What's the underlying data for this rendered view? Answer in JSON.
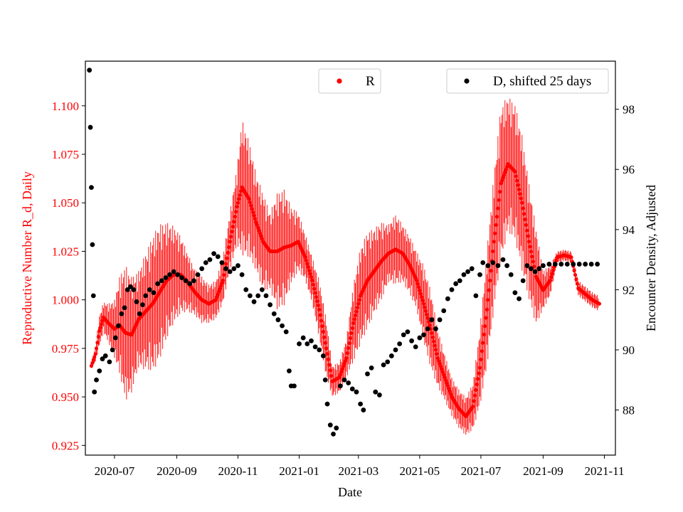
{
  "chart_data": {
    "type": "scatter",
    "xlabel": "Date",
    "ylabel_left": "Reproductive Number R_d, Daily",
    "ylabel_right": "Encounter Density, Adjusted",
    "x_range": [
      "2020-06-02",
      "2021-11-12"
    ],
    "ylim_left": [
      0.92,
      1.123
    ],
    "ylim_right": [
      86.5,
      99.6
    ],
    "x_ticks": [
      {
        "label": "2020-07",
        "date": "2020-07-01"
      },
      {
        "label": "2020-09",
        "date": "2020-09-01"
      },
      {
        "label": "2020-11",
        "date": "2020-11-01"
      },
      {
        "label": "2021-01",
        "date": "2021-01-01"
      },
      {
        "label": "2021-03",
        "date": "2021-03-01"
      },
      {
        "label": "2021-05",
        "date": "2021-05-01"
      },
      {
        "label": "2021-07",
        "date": "2021-07-01"
      },
      {
        "label": "2021-09",
        "date": "2021-09-01"
      },
      {
        "label": "2021-11",
        "date": "2021-11-01"
      }
    ],
    "y_ticks_left": [
      "0.925",
      "0.950",
      "0.975",
      "1.000",
      "1.025",
      "1.050",
      "1.075",
      "1.100"
    ],
    "y_ticks_right": [
      "88",
      "90",
      "92",
      "94",
      "96",
      "98"
    ],
    "legend_r": "R",
    "legend_d": "D, shifted 25 days",
    "colors": {
      "R": "#ff0000",
      "D": "#000000",
      "left_axis": "#ff0000"
    },
    "series_R": {
      "name": "R",
      "error_bars": true,
      "points": [
        [
          "2020-06-08",
          0.966,
          0.002
        ],
        [
          "2020-06-12",
          0.972,
          0.004
        ],
        [
          "2020-06-16",
          0.984,
          0.008
        ],
        [
          "2020-06-20",
          0.991,
          0.008
        ],
        [
          "2020-06-25",
          0.988,
          0.01
        ],
        [
          "2020-07-01",
          0.985,
          0.015
        ],
        [
          "2020-07-06",
          0.987,
          0.025
        ],
        [
          "2020-07-12",
          0.983,
          0.035
        ],
        [
          "2020-07-18",
          0.982,
          0.03
        ],
        [
          "2020-07-25",
          0.99,
          0.025
        ],
        [
          "2020-08-01",
          0.994,
          0.03
        ],
        [
          "2020-08-08",
          0.998,
          0.035
        ],
        [
          "2020-08-15",
          1.004,
          0.035
        ],
        [
          "2020-08-22",
          1.01,
          0.03
        ],
        [
          "2020-08-29",
          1.013,
          0.025
        ],
        [
          "2020-09-05",
          1.013,
          0.02
        ],
        [
          "2020-09-12",
          1.009,
          0.015
        ],
        [
          "2020-09-19",
          1.004,
          0.012
        ],
        [
          "2020-09-26",
          1.0,
          0.012
        ],
        [
          "2020-10-03",
          0.998,
          0.01
        ],
        [
          "2020-10-10",
          1.0,
          0.01
        ],
        [
          "2020-10-17",
          1.01,
          0.012
        ],
        [
          "2020-10-24",
          1.03,
          0.015
        ],
        [
          "2020-10-31",
          1.048,
          0.02
        ],
        [
          "2020-11-05",
          1.058,
          0.035
        ],
        [
          "2020-11-12",
          1.052,
          0.03
        ],
        [
          "2020-11-19",
          1.04,
          0.025
        ],
        [
          "2020-11-26",
          1.03,
          0.025
        ],
        [
          "2020-12-03",
          1.025,
          0.02
        ],
        [
          "2020-12-10",
          1.025,
          0.03
        ],
        [
          "2020-12-17",
          1.027,
          0.03
        ],
        [
          "2020-12-24",
          1.028,
          0.02
        ],
        [
          "2020-12-31",
          1.03,
          0.015
        ],
        [
          "2021-01-07",
          1.022,
          0.012
        ],
        [
          "2021-01-14",
          1.01,
          0.012
        ],
        [
          "2021-01-21",
          0.995,
          0.015
        ],
        [
          "2021-01-28",
          0.975,
          0.015
        ],
        [
          "2021-02-03",
          0.958,
          0.008
        ],
        [
          "2021-02-10",
          0.96,
          0.008
        ],
        [
          "2021-02-17",
          0.97,
          0.01
        ],
        [
          "2021-02-24",
          0.988,
          0.02
        ],
        [
          "2021-03-03",
          1.002,
          0.025
        ],
        [
          "2021-03-10",
          1.01,
          0.025
        ],
        [
          "2021-03-17",
          1.015,
          0.022
        ],
        [
          "2021-03-24",
          1.02,
          0.02
        ],
        [
          "2021-03-31",
          1.024,
          0.015
        ],
        [
          "2021-04-07",
          1.026,
          0.018
        ],
        [
          "2021-04-14",
          1.024,
          0.015
        ],
        [
          "2021-04-21",
          1.018,
          0.015
        ],
        [
          "2021-04-28",
          1.01,
          0.015
        ],
        [
          "2021-05-05",
          0.998,
          0.02
        ],
        [
          "2021-05-12",
          0.985,
          0.02
        ],
        [
          "2021-05-19",
          0.97,
          0.015
        ],
        [
          "2021-05-26",
          0.96,
          0.012
        ],
        [
          "2021-06-02",
          0.95,
          0.01
        ],
        [
          "2021-06-09",
          0.944,
          0.01
        ],
        [
          "2021-06-16",
          0.94,
          0.01
        ],
        [
          "2021-06-23",
          0.945,
          0.012
        ],
        [
          "2021-06-30",
          0.965,
          0.02
        ],
        [
          "2021-07-07",
          0.995,
          0.03
        ],
        [
          "2021-07-14",
          1.03,
          0.035
        ],
        [
          "2021-07-21",
          1.06,
          0.04
        ],
        [
          "2021-07-28",
          1.07,
          0.035
        ],
        [
          "2021-08-04",
          1.066,
          0.035
        ],
        [
          "2021-08-11",
          1.05,
          0.035
        ],
        [
          "2021-08-18",
          1.03,
          0.03
        ],
        [
          "2021-08-25",
          1.012,
          0.025
        ],
        [
          "2021-09-01",
          1.005,
          0.01
        ],
        [
          "2021-09-08",
          1.01,
          0.008
        ],
        [
          "2021-09-15",
          1.022,
          0.003
        ],
        [
          "2021-09-22",
          1.023,
          0.003
        ],
        [
          "2021-09-29",
          1.022,
          0.003
        ],
        [
          "2021-10-06",
          1.006,
          0.004
        ],
        [
          "2021-10-13",
          1.003,
          0.004
        ],
        [
          "2021-10-20",
          1.0,
          0.004
        ],
        [
          "2021-10-27",
          0.998,
          0.004
        ]
      ]
    },
    "series_D": {
      "name": "D, shifted 25 days",
      "axis": "right",
      "points": [
        [
          "2020-06-06",
          99.3
        ],
        [
          "2020-06-07",
          97.4
        ],
        [
          "2020-06-08",
          95.4
        ],
        [
          "2020-06-09",
          93.5
        ],
        [
          "2020-06-10",
          91.8
        ],
        [
          "2020-06-11",
          88.6
        ],
        [
          "2020-06-13",
          89.0
        ],
        [
          "2020-06-16",
          89.3
        ],
        [
          "2020-06-19",
          89.7
        ],
        [
          "2020-06-22",
          89.8
        ],
        [
          "2020-06-26",
          89.6
        ],
        [
          "2020-06-29",
          90.0
        ],
        [
          "2020-07-02",
          90.4
        ],
        [
          "2020-07-05",
          90.8
        ],
        [
          "2020-07-08",
          91.2
        ],
        [
          "2020-07-11",
          91.4
        ],
        [
          "2020-07-14",
          92.0
        ],
        [
          "2020-07-17",
          92.1
        ],
        [
          "2020-07-20",
          92.0
        ],
        [
          "2020-07-23",
          91.6
        ],
        [
          "2020-07-26",
          91.2
        ],
        [
          "2020-07-29",
          91.5
        ],
        [
          "2020-08-01",
          91.8
        ],
        [
          "2020-08-05",
          92.0
        ],
        [
          "2020-08-09",
          91.9
        ],
        [
          "2020-08-13",
          92.2
        ],
        [
          "2020-08-17",
          92.3
        ],
        [
          "2020-08-21",
          92.4
        ],
        [
          "2020-08-25",
          92.5
        ],
        [
          "2020-08-29",
          92.6
        ],
        [
          "2020-09-02",
          92.5
        ],
        [
          "2020-09-06",
          92.4
        ],
        [
          "2020-09-10",
          92.3
        ],
        [
          "2020-09-14",
          92.2
        ],
        [
          "2020-09-18",
          92.3
        ],
        [
          "2020-09-22",
          92.5
        ],
        [
          "2020-09-26",
          92.7
        ],
        [
          "2020-09-30",
          92.9
        ],
        [
          "2020-10-04",
          93.0
        ],
        [
          "2020-10-08",
          93.2
        ],
        [
          "2020-10-12",
          93.1
        ],
        [
          "2020-10-16",
          92.9
        ],
        [
          "2020-10-20",
          92.7
        ],
        [
          "2020-10-24",
          92.6
        ],
        [
          "2020-10-28",
          92.7
        ],
        [
          "2020-11-01",
          92.8
        ],
        [
          "2020-11-05",
          92.5
        ],
        [
          "2020-11-09",
          92.0
        ],
        [
          "2020-11-13",
          91.8
        ],
        [
          "2020-11-17",
          91.6
        ],
        [
          "2020-11-21",
          91.8
        ],
        [
          "2020-11-25",
          92.0
        ],
        [
          "2020-11-29",
          91.8
        ],
        [
          "2020-12-03",
          91.5
        ],
        [
          "2020-12-07",
          91.2
        ],
        [
          "2020-12-11",
          91.0
        ],
        [
          "2020-12-15",
          90.8
        ],
        [
          "2020-12-19",
          90.6
        ],
        [
          "2020-12-22",
          89.3
        ],
        [
          "2020-12-24",
          88.8
        ],
        [
          "2020-12-27",
          88.8
        ],
        [
          "2021-01-01",
          90.2
        ],
        [
          "2021-01-05",
          90.4
        ],
        [
          "2021-01-09",
          90.2
        ],
        [
          "2021-01-13",
          90.3
        ],
        [
          "2021-01-17",
          90.1
        ],
        [
          "2021-01-21",
          90.0
        ],
        [
          "2021-01-25",
          89.8
        ],
        [
          "2021-01-27",
          89.0
        ],
        [
          "2021-01-29",
          88.2
        ],
        [
          "2021-02-01",
          87.5
        ],
        [
          "2021-02-04",
          87.2
        ],
        [
          "2021-02-07",
          87.4
        ],
        [
          "2021-02-11",
          88.8
        ],
        [
          "2021-02-15",
          89.0
        ],
        [
          "2021-02-19",
          88.9
        ],
        [
          "2021-02-23",
          88.7
        ],
        [
          "2021-02-27",
          88.6
        ],
        [
          "2021-03-03",
          88.2
        ],
        [
          "2021-03-06",
          88.0
        ],
        [
          "2021-03-10",
          89.2
        ],
        [
          "2021-03-14",
          89.4
        ],
        [
          "2021-03-18",
          88.6
        ],
        [
          "2021-03-22",
          88.5
        ],
        [
          "2021-03-26",
          89.5
        ],
        [
          "2021-03-30",
          89.6
        ],
        [
          "2021-04-03",
          89.8
        ],
        [
          "2021-04-07",
          90.0
        ],
        [
          "2021-04-11",
          90.2
        ],
        [
          "2021-04-15",
          90.5
        ],
        [
          "2021-04-19",
          90.6
        ],
        [
          "2021-04-23",
          90.3
        ],
        [
          "2021-04-27",
          90.1
        ],
        [
          "2021-05-01",
          90.4
        ],
        [
          "2021-05-05",
          90.5
        ],
        [
          "2021-05-09",
          90.7
        ],
        [
          "2021-05-13",
          91.0
        ],
        [
          "2021-05-17",
          90.7
        ],
        [
          "2021-05-21",
          91.0
        ],
        [
          "2021-05-25",
          91.3
        ],
        [
          "2021-05-29",
          91.7
        ],
        [
          "2021-06-02",
          92.0
        ],
        [
          "2021-06-06",
          92.2
        ],
        [
          "2021-06-10",
          92.3
        ],
        [
          "2021-06-14",
          92.5
        ],
        [
          "2021-06-18",
          92.6
        ],
        [
          "2021-06-22",
          92.7
        ],
        [
          "2021-06-26",
          91.8
        ],
        [
          "2021-06-30",
          92.5
        ],
        [
          "2021-07-03",
          92.9
        ],
        [
          "2021-07-08",
          92.8
        ],
        [
          "2021-07-13",
          92.9
        ],
        [
          "2021-07-18",
          92.8
        ],
        [
          "2021-07-23",
          93.0
        ],
        [
          "2021-07-27",
          92.8
        ],
        [
          "2021-07-31",
          92.5
        ],
        [
          "2021-08-04",
          91.9
        ],
        [
          "2021-08-08",
          91.7
        ],
        [
          "2021-08-12",
          92.3
        ],
        [
          "2021-08-16",
          92.8
        ],
        [
          "2021-08-20",
          92.7
        ],
        [
          "2021-08-24",
          92.6
        ],
        [
          "2021-08-28",
          92.7
        ],
        [
          "2021-09-01",
          92.8
        ],
        [
          "2021-09-07",
          92.85
        ],
        [
          "2021-09-13",
          92.85
        ],
        [
          "2021-09-19",
          92.85
        ],
        [
          "2021-09-25",
          92.85
        ],
        [
          "2021-10-01",
          92.85
        ],
        [
          "2021-10-07",
          92.85
        ],
        [
          "2021-10-13",
          92.85
        ],
        [
          "2021-10-19",
          92.85
        ],
        [
          "2021-10-25",
          92.85
        ]
      ]
    }
  }
}
